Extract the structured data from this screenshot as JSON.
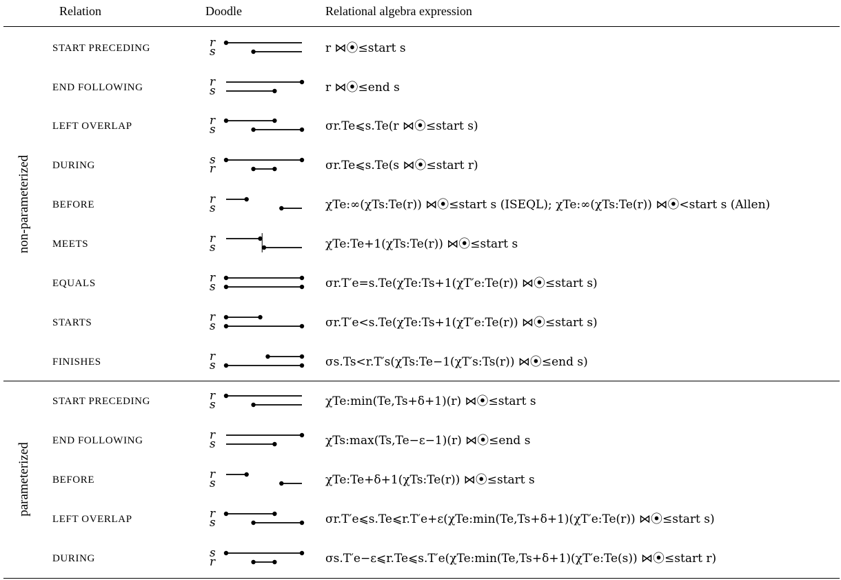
{
  "header": {
    "relation": "Relation",
    "doodle": "Doodle",
    "expression": "Relational algebra expression"
  },
  "groups": [
    {
      "label": "non-parameterized"
    },
    {
      "label": "parameterized"
    }
  ],
  "rows": [
    {
      "relation": "START PRECEDING",
      "expression": "r ⋈⦿≤start s",
      "doodle": {
        "top": "r",
        "bottom": "s",
        "top_bar": {
          "from": 0,
          "to": 1,
          "dot": "start"
        },
        "bottom_bar": {
          "from": 0.36,
          "to": 1,
          "dot": "start"
        }
      }
    },
    {
      "relation": "END FOLLOWING",
      "expression": "r ⋈⦿≤end s",
      "doodle": {
        "top": "r",
        "bottom": "s",
        "top_bar": {
          "from": 0,
          "to": 1,
          "dot": "end"
        },
        "bottom_bar": {
          "from": 0,
          "to": 0.64,
          "dot": "end"
        }
      }
    },
    {
      "relation": "LEFT OVERLAP",
      "expression": "σr.Te⩽s.Te(r ⋈⦿≤start s)",
      "doodle": {
        "top": "r",
        "bottom": "s",
        "top_bar": {
          "from": 0,
          "to": 0.64,
          "dot": "both"
        },
        "bottom_bar": {
          "from": 0.36,
          "to": 1,
          "dot": "both"
        }
      }
    },
    {
      "relation": "DURING",
      "expression": "σr.Te⩽s.Te(s ⋈⦿≤start r)",
      "doodle": {
        "top": "s",
        "bottom": "r",
        "top_bar": {
          "from": 0,
          "to": 1,
          "dot": "both"
        },
        "bottom_bar": {
          "from": 0.36,
          "to": 0.64,
          "dot": "both"
        }
      }
    },
    {
      "relation": "BEFORE",
      "expression": "χTe:∞(χTs:Te(r)) ⋈⦿≤start s (ISEQL); χTe:∞(χTs:Te(r)) ⋈⦿<start s (Allen)",
      "doodle": {
        "top": "r",
        "bottom": "s",
        "top_bar": {
          "from": 0,
          "to": 0.27,
          "dot": "end"
        },
        "bottom_bar": {
          "from": 0.73,
          "to": 1,
          "dot": "start"
        }
      }
    },
    {
      "relation": "MEETS",
      "expression": "χTe:Te+1(χTs:Te(r)) ⋈⦿≤start s",
      "doodle": {
        "top": "r",
        "bottom": "s",
        "top_bar": {
          "from": 0,
          "to": 0.45,
          "dot": "end"
        },
        "bottom_bar": {
          "from": 0.5,
          "to": 1,
          "dot": "start"
        },
        "divider": 0.475
      }
    },
    {
      "relation": "EQUALS",
      "expression": "σr.T′e=s.Te(χTe:Ts+1(χT′e:Te(r)) ⋈⦿≤start s)",
      "doodle": {
        "top": "r",
        "bottom": "s",
        "top_bar": {
          "from": 0,
          "to": 1,
          "dot": "both"
        },
        "bottom_bar": {
          "from": 0,
          "to": 1,
          "dot": "both"
        }
      }
    },
    {
      "relation": "STARTS",
      "expression": "σr.T′e<s.Te(χTe:Ts+1(χT′e:Te(r)) ⋈⦿≤start s)",
      "doodle": {
        "top": "r",
        "bottom": "s",
        "top_bar": {
          "from": 0,
          "to": 0.45,
          "dot": "both"
        },
        "bottom_bar": {
          "from": 0,
          "to": 1,
          "dot": "both"
        }
      }
    },
    {
      "relation": "FINISHES",
      "expression": "σs.Ts<r.T′s(χTs:Te−1(χT′s:Ts(r)) ⋈⦿≤end s)",
      "doodle": {
        "top": "r",
        "bottom": "s",
        "top_bar": {
          "from": 0.55,
          "to": 1,
          "dot": "both"
        },
        "bottom_bar": {
          "from": 0,
          "to": 1,
          "dot": "both"
        }
      }
    },
    {
      "relation": "START PRECEDING",
      "expression": "χTe:min(Te,Ts+δ+1)(r) ⋈⦿≤start s",
      "doodle": {
        "top": "r",
        "bottom": "s",
        "top_bar": {
          "from": 0,
          "to": 1,
          "dot": "start"
        },
        "bottom_bar": {
          "from": 0.36,
          "to": 1,
          "dot": "start"
        }
      }
    },
    {
      "relation": "END FOLLOWING",
      "expression": "χTs:max(Ts,Te−ε−1)(r) ⋈⦿≤end s",
      "doodle": {
        "top": "r",
        "bottom": "s",
        "top_bar": {
          "from": 0,
          "to": 1,
          "dot": "end"
        },
        "bottom_bar": {
          "from": 0,
          "to": 0.64,
          "dot": "end"
        }
      }
    },
    {
      "relation": "BEFORE",
      "expression": "χTe:Te+δ+1(χTs:Te(r)) ⋈⦿≤start s",
      "doodle": {
        "top": "r",
        "bottom": "s",
        "top_bar": {
          "from": 0,
          "to": 0.27,
          "dot": "end"
        },
        "bottom_bar": {
          "from": 0.73,
          "to": 1,
          "dot": "start"
        }
      }
    },
    {
      "relation": "LEFT OVERLAP",
      "expression": "σr.T′e⩽s.Te⩽r.T′e+ε(χTe:min(Te,Ts+δ+1)(χT′e:Te(r)) ⋈⦿≤start s)",
      "doodle": {
        "top": "r",
        "bottom": "s",
        "top_bar": {
          "from": 0,
          "to": 0.64,
          "dot": "both"
        },
        "bottom_bar": {
          "from": 0.36,
          "to": 1,
          "dot": "both"
        }
      }
    },
    {
      "relation": "DURING",
      "expression": "σs.T′e−ε⩽r.Te⩽s.T′e(χTe:min(Te,Ts+δ+1)(χT′e:Te(s)) ⋈⦿≤start r)",
      "doodle": {
        "top": "s",
        "bottom": "r",
        "top_bar": {
          "from": 0,
          "to": 1,
          "dot": "both"
        },
        "bottom_bar": {
          "from": 0.36,
          "to": 0.64,
          "dot": "both"
        }
      }
    }
  ]
}
